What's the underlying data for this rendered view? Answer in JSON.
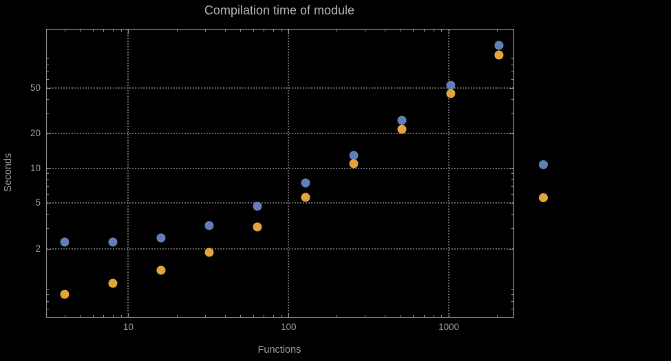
{
  "chart": {
    "title": "Compilation time of module",
    "xlabel": "Functions",
    "ylabel": "Seconds"
  },
  "colors": {
    "background": "#000000",
    "frame": "#8c8c8c",
    "grid": "#5c5c5c",
    "text": "#9a9a9a",
    "title": "#b0b0b0",
    "series_blue": "#5e81b5",
    "series_orange": "#e2a33c"
  },
  "chart_data": {
    "type": "scatter",
    "title": "Compilation time of module",
    "xlabel": "Functions",
    "ylabel": "Seconds",
    "x_scale": "log",
    "y_scale": "log",
    "xlim": [
      3.1,
      2530
    ],
    "ylim": [
      0.51,
      161
    ],
    "grid": "dotted",
    "x_ticks": [
      {
        "value": 10,
        "label": "10"
      },
      {
        "value": 100,
        "label": "100"
      },
      {
        "value": 1000,
        "label": "1000"
      }
    ],
    "y_ticks": [
      {
        "value": 2,
        "label": "2"
      },
      {
        "value": 5,
        "label": "5"
      },
      {
        "value": 10,
        "label": "10"
      },
      {
        "value": 20,
        "label": "20"
      },
      {
        "value": 50,
        "label": "50"
      }
    ],
    "series": [
      {
        "name": "series-blue",
        "color": "#5e81b5",
        "x": [
          4,
          8,
          16,
          32,
          64,
          128,
          256,
          512,
          1024,
          2048
        ],
        "y": [
          2.3,
          2.3,
          2.5,
          3.2,
          4.7,
          7.5,
          13,
          26,
          53,
          118
        ]
      },
      {
        "name": "series-orange",
        "color": "#e2a33c",
        "x": [
          4,
          8,
          16,
          32,
          64,
          128,
          256,
          512,
          1024,
          2048
        ],
        "y": [
          0.8,
          1.0,
          1.3,
          1.85,
          3.1,
          5.6,
          11,
          22,
          45,
          97
        ]
      }
    ],
    "legend": {
      "position": "right",
      "markers": [
        {
          "color": "#5e81b5",
          "label": ""
        },
        {
          "color": "#e2a33c",
          "label": ""
        }
      ]
    }
  }
}
